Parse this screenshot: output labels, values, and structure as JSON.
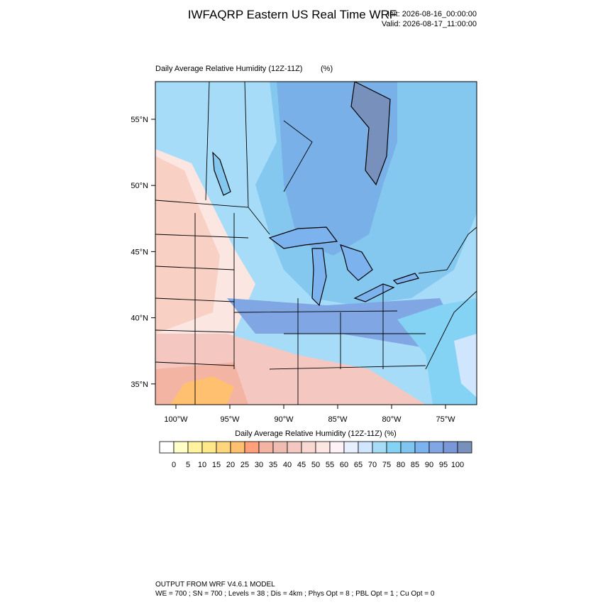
{
  "header": {
    "title": "IWFAQRP Eastern US Real Time WRF",
    "init": "Init: 2026-08-16_00:00:00",
    "valid": "Valid: 2026-08-17_11:00:00"
  },
  "map": {
    "title": "Daily Average Relative Humidity (12Z-11Z)",
    "units": "(%)",
    "lat_labels": [
      "55°N",
      "50°N",
      "45°N",
      "40°N",
      "35°N"
    ],
    "lon_labels": [
      "100°W",
      "95°W",
      "90°W",
      "85°W",
      "80°W",
      "75°W"
    ]
  },
  "colorbar": {
    "title": "Daily Average Relative Humidity (12Z-11Z)  (%)",
    "levels": [
      0,
      5,
      10,
      15,
      20,
      25,
      30,
      35,
      40,
      45,
      50,
      55,
      60,
      65,
      70,
      75,
      80,
      85,
      90,
      95,
      100
    ],
    "colors": [
      "#ffffff",
      "#ffffc8",
      "#fff3a0",
      "#ffe88a",
      "#ffd67e",
      "#ffc070",
      "#ffa07a",
      "#f4b4a4",
      "#f0bcb2",
      "#f4c8c0",
      "#f8d8d0",
      "#fce6e2",
      "#fff2f6",
      "#e8f0ff",
      "#d0e6ff",
      "#a6dcf8",
      "#84d2f4",
      "#80c4f0",
      "#7cb2ee",
      "#80a6e4",
      "#7a98d8",
      "#7890bc"
    ]
  },
  "footer": {
    "line1": "OUTPUT FROM WRF V4.6.1 MODEL",
    "line2": "WE = 700 ; SN = 700 ; Levels = 38 ; Dis = 4km ; Phys Opt = 8 ; PBL Opt = 1 ; Cu Opt = 0"
  }
}
